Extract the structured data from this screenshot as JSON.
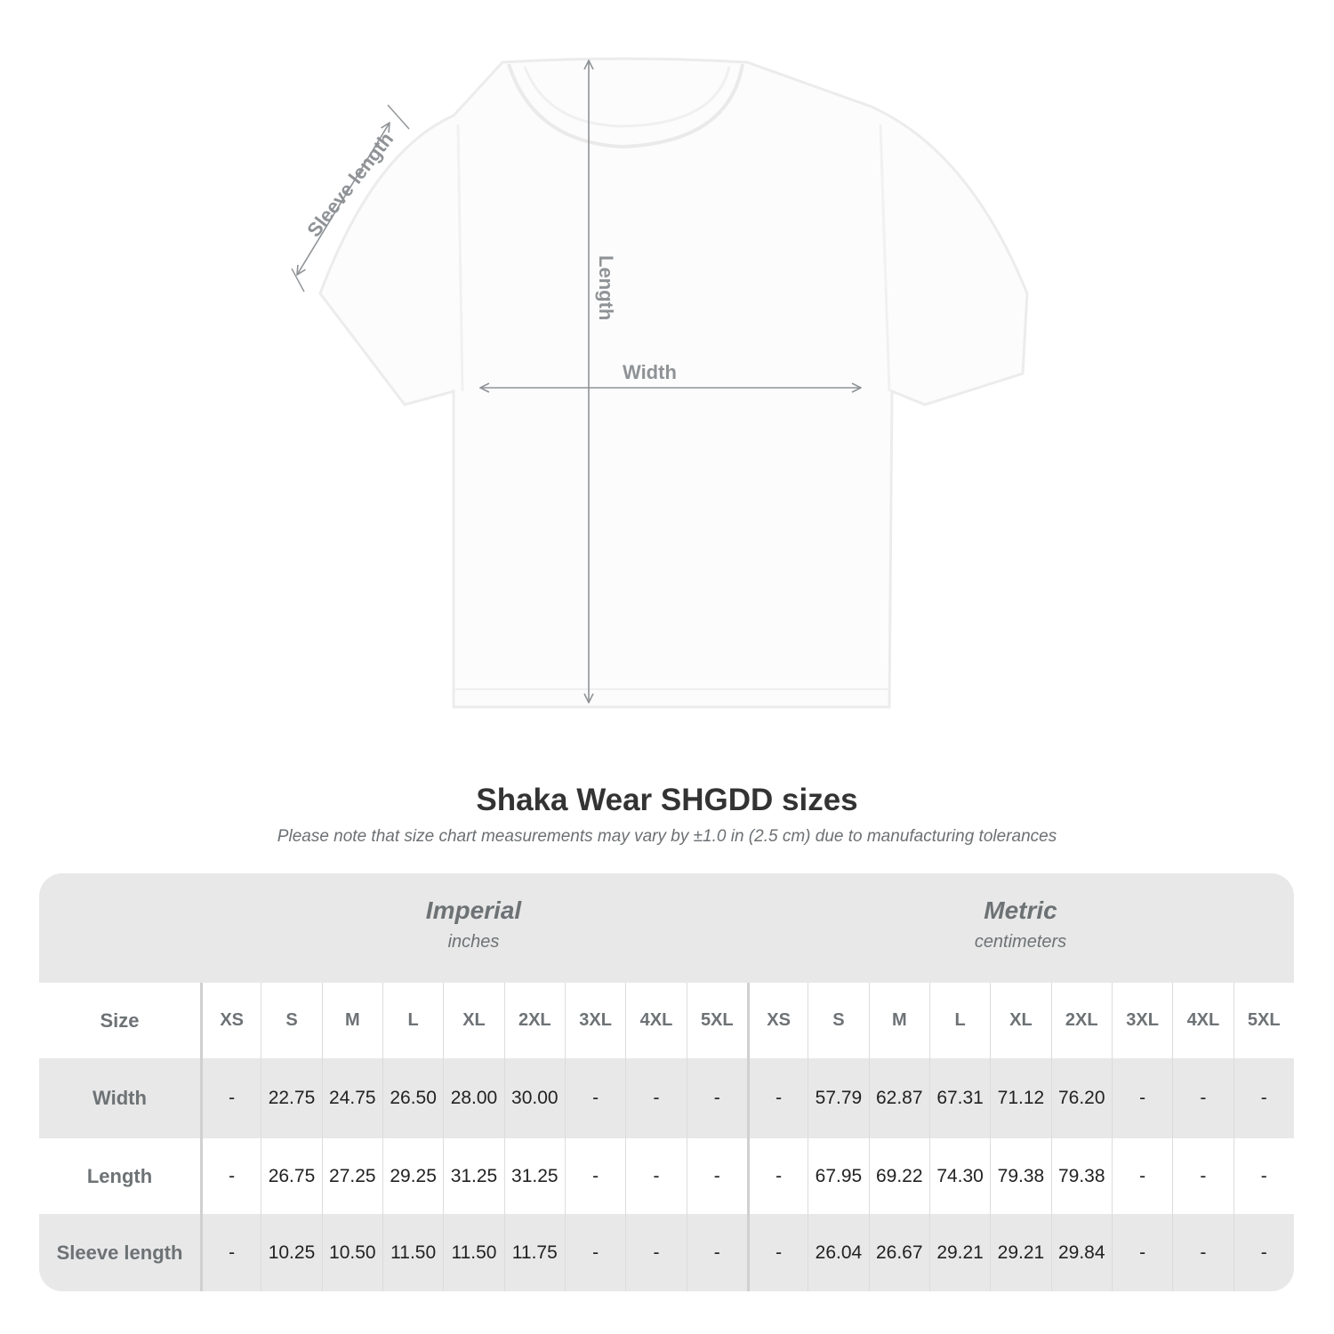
{
  "diagram": {
    "labels": {
      "sleeve": "Sleeve length",
      "length": "Length",
      "width": "Width"
    },
    "arrow_color": "#8f9396"
  },
  "title": "Shaka Wear SHGDD sizes",
  "subtitle": "Please note that size chart measurements may vary by ±1.0 in (2.5 cm) due to manufacturing tolerances",
  "table": {
    "groups": [
      {
        "name": "Imperial",
        "unit": "inches"
      },
      {
        "name": "Metric",
        "unit": "centimeters"
      }
    ],
    "size_label": "Size",
    "sizes": [
      "XS",
      "S",
      "M",
      "L",
      "XL",
      "2XL",
      "3XL",
      "4XL",
      "5XL"
    ],
    "rows": [
      {
        "label": "Width",
        "imperial": [
          "-",
          "22.75",
          "24.75",
          "26.50",
          "28.00",
          "30.00",
          "-",
          "-",
          "-"
        ],
        "metric": [
          "-",
          "57.79",
          "62.87",
          "67.31",
          "71.12",
          "76.20",
          "-",
          "-",
          "-"
        ]
      },
      {
        "label": "Length",
        "imperial": [
          "-",
          "26.75",
          "27.25",
          "29.25",
          "31.25",
          "31.25",
          "-",
          "-",
          "-"
        ],
        "metric": [
          "-",
          "67.95",
          "69.22",
          "74.30",
          "79.38",
          "79.38",
          "-",
          "-",
          "-"
        ]
      },
      {
        "label": "Sleeve length",
        "imperial": [
          "-",
          "10.25",
          "10.50",
          "11.50",
          "11.50",
          "11.75",
          "-",
          "-",
          "-"
        ],
        "metric": [
          "-",
          "26.04",
          "26.67",
          "29.21",
          "29.21",
          "29.84",
          "-",
          "-",
          "-"
        ]
      }
    ]
  }
}
